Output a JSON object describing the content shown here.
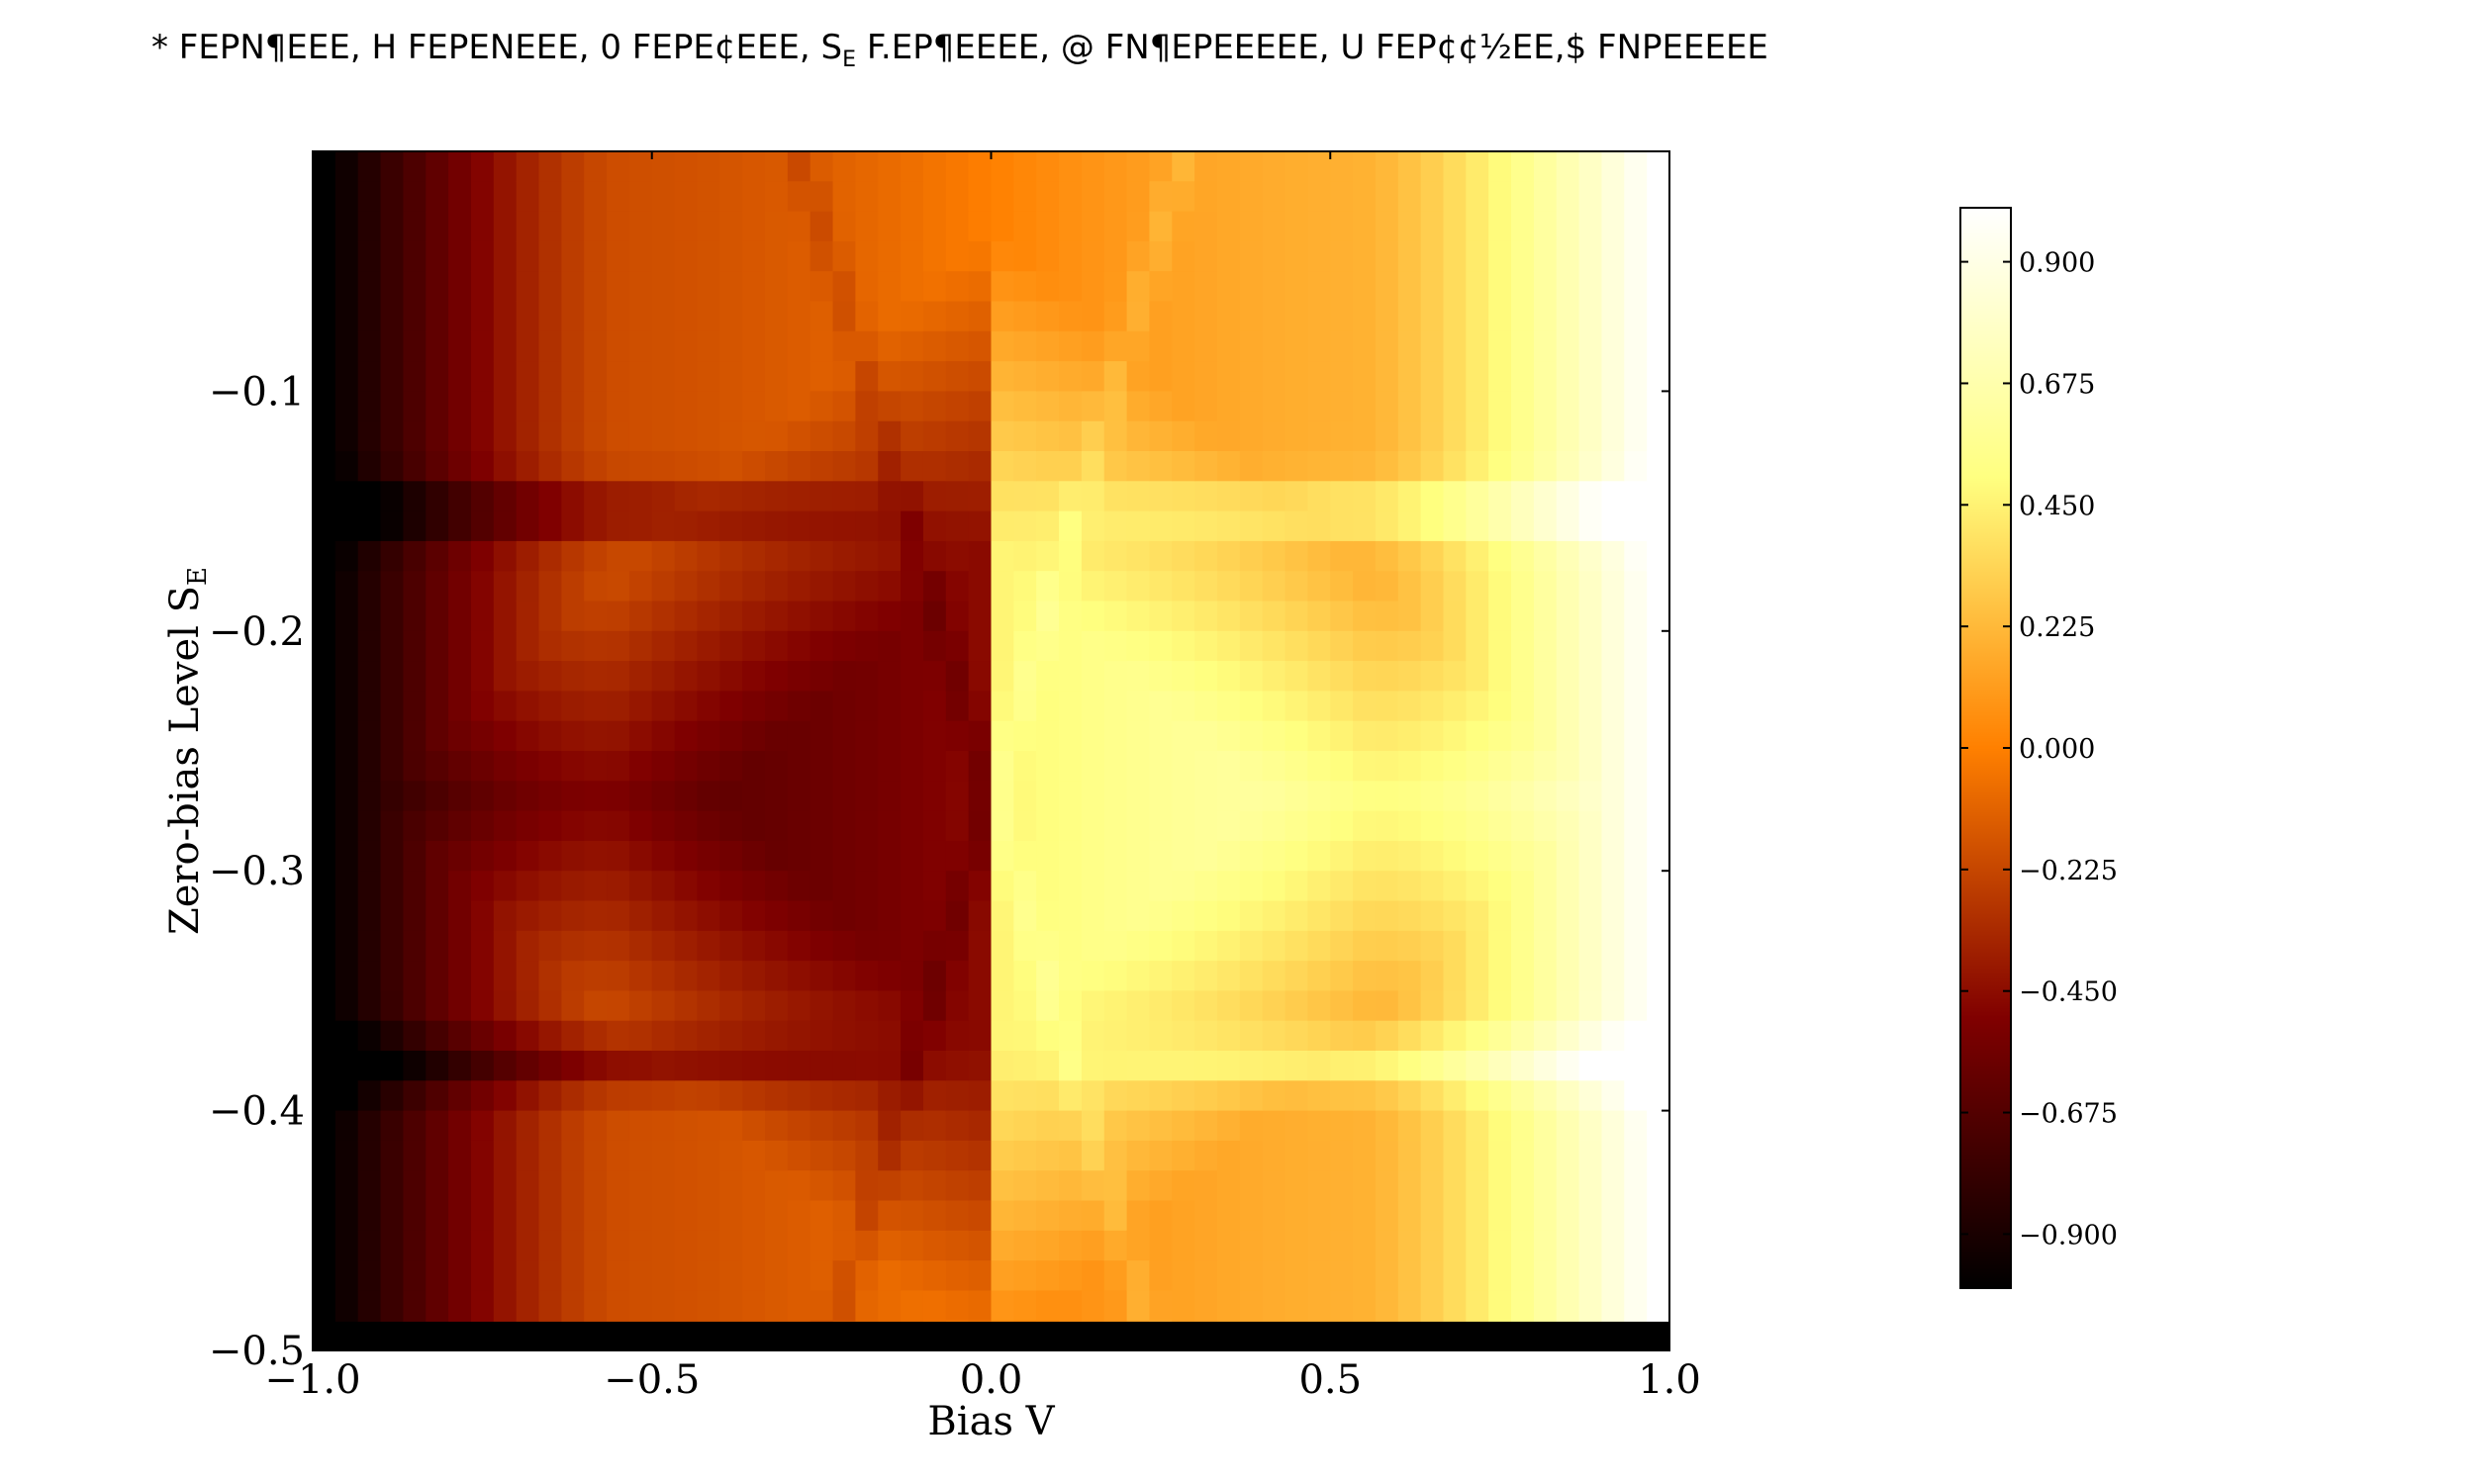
{
  "chart_data": {
    "type": "heatmap",
    "title": {
      "part1": "* FEPN¶EEE, H FEPENEEE, 0 FEPE¢EEE, S",
      "sub": "E",
      "part2": " F.EP¶EEEE, @ FN¶EPEEEEE, U FEP¢¢½EE,$ FNPEEEEE"
    },
    "xlabel": "Bias V",
    "ylabel": {
      "main": "Zero-bias Level S",
      "sub": "E"
    },
    "xlim": [
      -1.0,
      1.0
    ],
    "ylim": [
      -0.5,
      0.0
    ],
    "x_ticks": [
      "−1.0",
      "−0.5",
      "0.0",
      "0.5",
      "1.0"
    ],
    "x_tick_values": [
      -1.0,
      -0.5,
      0.0,
      0.5,
      1.0
    ],
    "y_ticks": [
      "−0.1",
      "−0.2",
      "−0.3",
      "−0.4",
      "−0.5"
    ],
    "y_tick_values": [
      -0.1,
      -0.2,
      -0.3,
      -0.4,
      -0.5
    ],
    "colormap": "afmhot",
    "color_range": [
      -1.0,
      1.0
    ],
    "colorbar_ticks": [
      "0.900",
      "0.675",
      "0.450",
      "0.225",
      "0.000",
      "−0.225",
      "−0.450",
      "−0.675",
      "−0.900"
    ],
    "colorbar_tick_values": [
      0.9,
      0.675,
      0.45,
      0.225,
      0.0,
      -0.225,
      -0.45,
      -0.675,
      -0.9
    ],
    "features": {
      "diamond_centers_y": [
        -0.27
      ],
      "resonance_lines_y": [
        -0.15,
        -0.38
      ],
      "dark_band_y": [
        -0.5,
        -0.488
      ]
    },
    "colors": {
      "low": "#000000",
      "mid": "#ff8000",
      "high": "#ffffff"
    }
  }
}
